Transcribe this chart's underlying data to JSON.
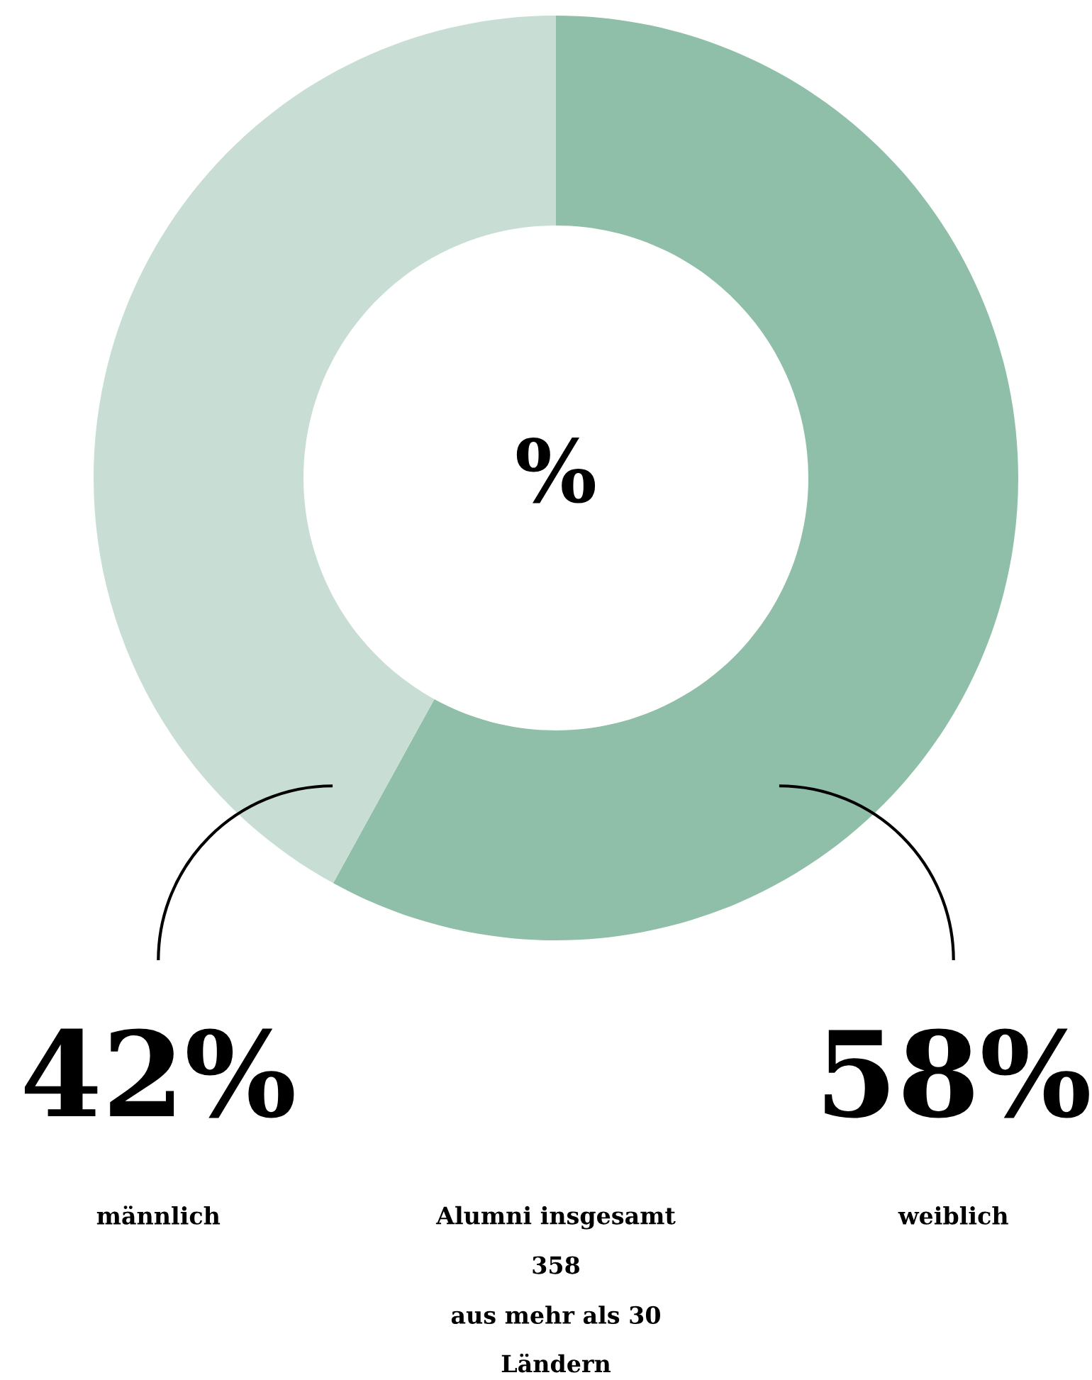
{
  "chart_data": {
    "type": "donut",
    "categories": [
      "weiblich",
      "männlich"
    ],
    "values": [
      58,
      42
    ],
    "colors": [
      "#8fbfa8",
      "#c8ded4"
    ],
    "value_labels": [
      "58%",
      "42%"
    ],
    "legend": false,
    "annotations": [
      "%",
      "Alumni insgesamt",
      "358",
      "aus mehr als 30",
      "Ländern"
    ]
  }
}
